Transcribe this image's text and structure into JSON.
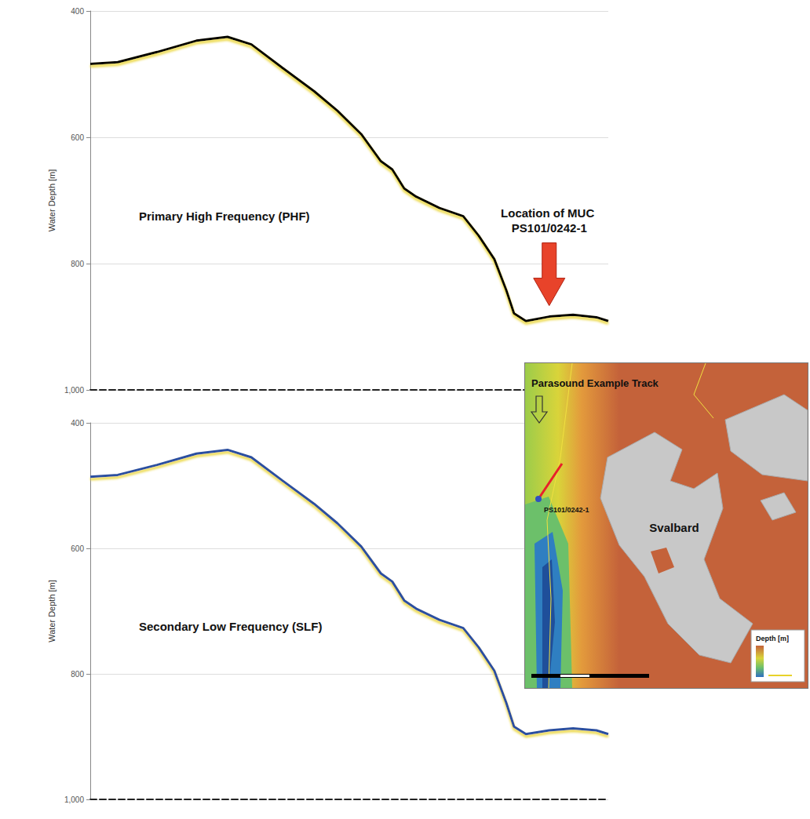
{
  "chart_data": [
    {
      "type": "line",
      "title": "Primary High Frequency (PHF)",
      "y_label": "Water Depth [m]",
      "x": [
        0,
        5.3,
        12.9,
        20.5,
        26.5,
        31.1,
        37.1,
        43.2,
        47.7,
        52.3,
        56.1,
        58.3,
        60.6,
        62.9,
        67.4,
        72,
        75,
        78,
        80.3,
        81.8,
        84.1,
        88.6,
        93.2,
        97.7,
        100
      ],
      "series": [
        {
          "color": "#000000",
          "values": [
            484,
            481,
            465,
            447,
            441,
            453,
            490,
            527,
            558,
            595,
            638,
            651,
            681,
            694,
            712,
            725,
            756,
            793,
            842,
            879,
            891,
            884,
            881,
            885,
            891
          ]
        }
      ],
      "xlim": [
        0,
        100
      ],
      "ylim": [
        400,
        1000
      ],
      "yticks": [
        400,
        600,
        800,
        1000
      ],
      "grid": true,
      "tick_labels": "y",
      "annotations": [
        {
          "text": "Location of MUC PS101/0242-1",
          "x": 88.6
        }
      ]
    },
    {
      "type": "line",
      "title": "Secondary Low Frequency (SLF)",
      "y_label": "Water Depth [m]",
      "x": [
        0,
        5.3,
        12.9,
        20.5,
        26.5,
        31.1,
        37.1,
        43.2,
        47.7,
        52.3,
        56.1,
        58.3,
        60.6,
        62.9,
        67.4,
        72,
        75,
        78,
        80.3,
        81.8,
        84.1,
        88.6,
        93.2,
        97.7,
        100
      ],
      "series": [
        {
          "color": "#2a4fa0",
          "values": [
            486,
            483,
            467,
            449,
            443,
            455,
            492,
            529,
            560,
            597,
            640,
            653,
            683,
            696,
            714,
            727,
            758,
            795,
            846,
            884,
            896,
            890,
            887,
            890,
            896
          ]
        }
      ],
      "xlim": [
        0,
        100
      ],
      "ylim": [
        400,
        1000
      ],
      "yticks": [
        400,
        600,
        800,
        1000
      ],
      "grid": true,
      "tick_labels": "y"
    }
  ],
  "map": {
    "track_label": "Parasound Example Track",
    "island_label": "Svalbard",
    "station_label": "PS101/0242-1",
    "legend_title": "Depth [m]"
  }
}
